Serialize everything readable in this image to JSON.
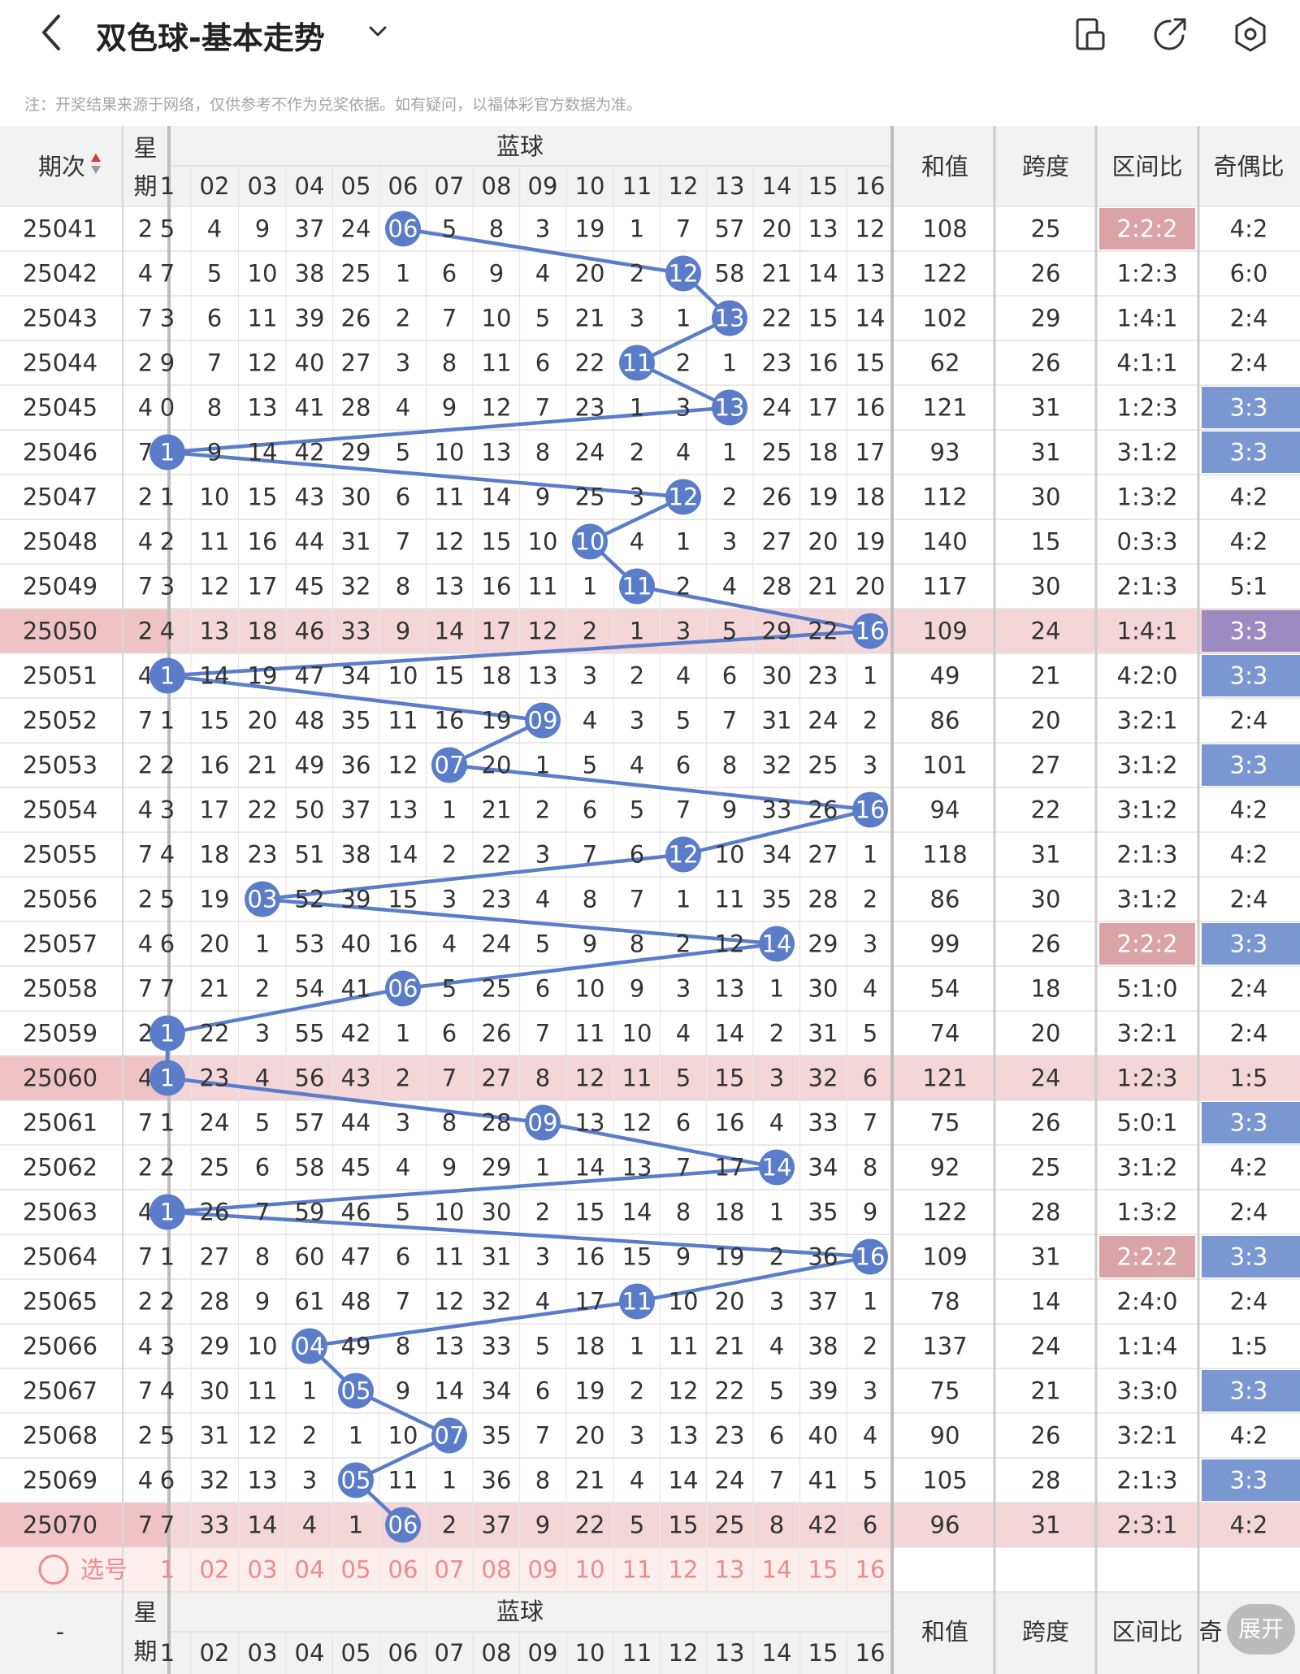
{
  "header": {
    "back_label": "<",
    "title": "双色球-基本走势",
    "dropdown_icon": "chevron-down-icon",
    "icons": [
      "phone-layout-icon",
      "share-icon",
      "settings-icon"
    ]
  },
  "note": "注：开奖结果来源于网络，仅供参考不作为兑奖依据。如有疑问，以福体彩官方数据为准。",
  "table": {
    "col_period": "期次",
    "col_week": "星期",
    "col_week_chars": [
      "星",
      "期"
    ],
    "group_label": "蓝球",
    "ball_headers": [
      "1",
      "02",
      "03",
      "04",
      "05",
      "06",
      "07",
      "08",
      "09",
      "10",
      "11",
      "12",
      "13",
      "14",
      "15",
      "16"
    ],
    "col_sum": "和值",
    "col_span": "跨度",
    "col_zone": "区间比",
    "col_parity": "奇偶比",
    "rows": [
      {
        "period": "25041",
        "week": "2",
        "cells": [
          "5",
          "4",
          "9",
          "37",
          "24",
          "06",
          "5",
          "8",
          "3",
          "19",
          "1",
          "7",
          "57",
          "20",
          "13",
          "12"
        ],
        "hit": 6,
        "sum": "108",
        "span": "25",
        "zone": "2:2:2",
        "zone_hl": true,
        "parity": "4:2",
        "parity_hl": false,
        "hl": false
      },
      {
        "period": "25042",
        "week": "4",
        "cells": [
          "7",
          "5",
          "10",
          "38",
          "25",
          "1",
          "6",
          "9",
          "4",
          "20",
          "2",
          "12",
          "58",
          "21",
          "14",
          "13"
        ],
        "hit": 12,
        "sum": "122",
        "span": "26",
        "zone": "1:2:3",
        "zone_hl": false,
        "parity": "6:0",
        "parity_hl": false,
        "hl": false
      },
      {
        "period": "25043",
        "week": "7",
        "cells": [
          "3",
          "6",
          "11",
          "39",
          "26",
          "2",
          "7",
          "10",
          "5",
          "21",
          "3",
          "1",
          "13",
          "22",
          "15",
          "14"
        ],
        "hit": 13,
        "sum": "102",
        "span": "29",
        "zone": "1:4:1",
        "zone_hl": false,
        "parity": "2:4",
        "parity_hl": false,
        "hl": false
      },
      {
        "period": "25044",
        "week": "2",
        "cells": [
          "9",
          "7",
          "12",
          "40",
          "27",
          "3",
          "8",
          "11",
          "6",
          "22",
          "11",
          "2",
          "1",
          "23",
          "16",
          "15"
        ],
        "hit": 11,
        "sum": "62",
        "span": "26",
        "zone": "4:1:1",
        "zone_hl": false,
        "parity": "2:4",
        "parity_hl": false,
        "hl": false
      },
      {
        "period": "25045",
        "week": "4",
        "cells": [
          "0",
          "8",
          "13",
          "41",
          "28",
          "4",
          "9",
          "12",
          "7",
          "23",
          "1",
          "3",
          "13",
          "24",
          "17",
          "16"
        ],
        "hit": 13,
        "sum": "121",
        "span": "31",
        "zone": "1:2:3",
        "zone_hl": false,
        "parity": "3:3",
        "parity_hl": true,
        "hl": false
      },
      {
        "period": "25046",
        "week": "7",
        "cells": [
          "1",
          "9",
          "14",
          "42",
          "29",
          "5",
          "10",
          "13",
          "8",
          "24",
          "2",
          "4",
          "1",
          "25",
          "18",
          "17"
        ],
        "hit": 1,
        "sum": "93",
        "span": "31",
        "zone": "3:1:2",
        "zone_hl": false,
        "parity": "3:3",
        "parity_hl": true,
        "hl": false
      },
      {
        "period": "25047",
        "week": "2",
        "cells": [
          "1",
          "10",
          "15",
          "43",
          "30",
          "6",
          "11",
          "14",
          "9",
          "25",
          "3",
          "12",
          "2",
          "26",
          "19",
          "18"
        ],
        "hit": 12,
        "sum": "112",
        "span": "30",
        "zone": "1:3:2",
        "zone_hl": false,
        "parity": "4:2",
        "parity_hl": false,
        "hl": false
      },
      {
        "period": "25048",
        "week": "4",
        "cells": [
          "2",
          "11",
          "16",
          "44",
          "31",
          "7",
          "12",
          "15",
          "10",
          "10",
          "4",
          "1",
          "3",
          "27",
          "20",
          "19"
        ],
        "hit": 10,
        "sum": "140",
        "span": "15",
        "zone": "0:3:3",
        "zone_hl": false,
        "parity": "4:2",
        "parity_hl": false,
        "hl": false
      },
      {
        "period": "25049",
        "week": "7",
        "cells": [
          "3",
          "12",
          "17",
          "45",
          "32",
          "8",
          "13",
          "16",
          "11",
          "1",
          "11",
          "2",
          "4",
          "28",
          "21",
          "20"
        ],
        "hit": 11,
        "sum": "117",
        "span": "30",
        "zone": "2:1:3",
        "zone_hl": false,
        "parity": "5:1",
        "parity_hl": false,
        "hl": false
      },
      {
        "period": "25050",
        "week": "2",
        "cells": [
          "4",
          "13",
          "18",
          "46",
          "33",
          "9",
          "14",
          "17",
          "12",
          "2",
          "1",
          "3",
          "5",
          "29",
          "22",
          "16"
        ],
        "hit": 16,
        "sum": "109",
        "span": "24",
        "zone": "1:4:1",
        "zone_hl": false,
        "parity": "3:3",
        "parity_hl": true,
        "hl": true
      },
      {
        "period": "25051",
        "week": "4",
        "cells": [
          "1",
          "14",
          "19",
          "47",
          "34",
          "10",
          "15",
          "18",
          "13",
          "3",
          "2",
          "4",
          "6",
          "30",
          "23",
          "1"
        ],
        "hit": 1,
        "sum": "49",
        "span": "21",
        "zone": "4:2:0",
        "zone_hl": false,
        "parity": "3:3",
        "parity_hl": true,
        "hl": false
      },
      {
        "period": "25052",
        "week": "7",
        "cells": [
          "1",
          "15",
          "20",
          "48",
          "35",
          "11",
          "16",
          "19",
          "09",
          "4",
          "3",
          "5",
          "7",
          "31",
          "24",
          "2"
        ],
        "hit": 9,
        "sum": "86",
        "span": "20",
        "zone": "3:2:1",
        "zone_hl": false,
        "parity": "2:4",
        "parity_hl": false,
        "hl": false
      },
      {
        "period": "25053",
        "week": "2",
        "cells": [
          "2",
          "16",
          "21",
          "49",
          "36",
          "12",
          "07",
          "20",
          "1",
          "5",
          "4",
          "6",
          "8",
          "32",
          "25",
          "3"
        ],
        "hit": 7,
        "sum": "101",
        "span": "27",
        "zone": "3:1:2",
        "zone_hl": false,
        "parity": "3:3",
        "parity_hl": true,
        "hl": false
      },
      {
        "period": "25054",
        "week": "4",
        "cells": [
          "3",
          "17",
          "22",
          "50",
          "37",
          "13",
          "1",
          "21",
          "2",
          "6",
          "5",
          "7",
          "9",
          "33",
          "26",
          "16"
        ],
        "hit": 16,
        "sum": "94",
        "span": "22",
        "zone": "3:1:2",
        "zone_hl": false,
        "parity": "4:2",
        "parity_hl": false,
        "hl": false
      },
      {
        "period": "25055",
        "week": "7",
        "cells": [
          "4",
          "18",
          "23",
          "51",
          "38",
          "14",
          "2",
          "22",
          "3",
          "7",
          "6",
          "12",
          "10",
          "34",
          "27",
          "1"
        ],
        "hit": 12,
        "sum": "118",
        "span": "31",
        "zone": "2:1:3",
        "zone_hl": false,
        "parity": "4:2",
        "parity_hl": false,
        "hl": false
      },
      {
        "period": "25056",
        "week": "2",
        "cells": [
          "5",
          "19",
          "03",
          "52",
          "39",
          "15",
          "3",
          "23",
          "4",
          "8",
          "7",
          "1",
          "11",
          "35",
          "28",
          "2"
        ],
        "hit": 3,
        "sum": "86",
        "span": "30",
        "zone": "3:1:2",
        "zone_hl": false,
        "parity": "2:4",
        "parity_hl": false,
        "hl": false
      },
      {
        "period": "25057",
        "week": "4",
        "cells": [
          "6",
          "20",
          "1",
          "53",
          "40",
          "16",
          "4",
          "24",
          "5",
          "9",
          "8",
          "2",
          "12",
          "14",
          "29",
          "3"
        ],
        "hit": 14,
        "sum": "99",
        "span": "26",
        "zone": "2:2:2",
        "zone_hl": true,
        "parity": "3:3",
        "parity_hl": true,
        "hl": false
      },
      {
        "period": "25058",
        "week": "7",
        "cells": [
          "7",
          "21",
          "2",
          "54",
          "41",
          "06",
          "5",
          "25",
          "6",
          "10",
          "9",
          "3",
          "13",
          "1",
          "30",
          "4"
        ],
        "hit": 6,
        "sum": "54",
        "span": "18",
        "zone": "5:1:0",
        "zone_hl": false,
        "parity": "2:4",
        "parity_hl": false,
        "hl": false
      },
      {
        "period": "25059",
        "week": "2",
        "cells": [
          "1",
          "22",
          "3",
          "55",
          "42",
          "1",
          "6",
          "26",
          "7",
          "11",
          "10",
          "4",
          "14",
          "2",
          "31",
          "5"
        ],
        "hit": 1,
        "sum": "74",
        "span": "20",
        "zone": "3:2:1",
        "zone_hl": false,
        "parity": "2:4",
        "parity_hl": false,
        "hl": false
      },
      {
        "period": "25060",
        "week": "4",
        "cells": [
          "1",
          "23",
          "4",
          "56",
          "43",
          "2",
          "7",
          "27",
          "8",
          "12",
          "11",
          "5",
          "15",
          "3",
          "32",
          "6"
        ],
        "hit": 1,
        "sum": "121",
        "span": "24",
        "zone": "1:2:3",
        "zone_hl": false,
        "parity": "1:5",
        "parity_hl": false,
        "hl": true
      },
      {
        "period": "25061",
        "week": "7",
        "cells": [
          "1",
          "24",
          "5",
          "57",
          "44",
          "3",
          "8",
          "28",
          "09",
          "13",
          "12",
          "6",
          "16",
          "4",
          "33",
          "7"
        ],
        "hit": 9,
        "sum": "75",
        "span": "26",
        "zone": "5:0:1",
        "zone_hl": false,
        "parity": "3:3",
        "parity_hl": true,
        "hl": false
      },
      {
        "period": "25062",
        "week": "2",
        "cells": [
          "2",
          "25",
          "6",
          "58",
          "45",
          "4",
          "9",
          "29",
          "1",
          "14",
          "13",
          "7",
          "17",
          "14",
          "34",
          "8"
        ],
        "hit": 14,
        "sum": "92",
        "span": "25",
        "zone": "3:1:2",
        "zone_hl": false,
        "parity": "4:2",
        "parity_hl": false,
        "hl": false
      },
      {
        "period": "25063",
        "week": "4",
        "cells": [
          "1",
          "26",
          "7",
          "59",
          "46",
          "5",
          "10",
          "30",
          "2",
          "15",
          "14",
          "8",
          "18",
          "1",
          "35",
          "9"
        ],
        "hit": 1,
        "sum": "122",
        "span": "28",
        "zone": "1:3:2",
        "zone_hl": false,
        "parity": "2:4",
        "parity_hl": false,
        "hl": false
      },
      {
        "period": "25064",
        "week": "7",
        "cells": [
          "1",
          "27",
          "8",
          "60",
          "47",
          "6",
          "11",
          "31",
          "3",
          "16",
          "15",
          "9",
          "19",
          "2",
          "36",
          "16"
        ],
        "hit": 16,
        "sum": "109",
        "span": "31",
        "zone": "2:2:2",
        "zone_hl": true,
        "parity": "3:3",
        "parity_hl": true,
        "hl": false
      },
      {
        "period": "25065",
        "week": "2",
        "cells": [
          "2",
          "28",
          "9",
          "61",
          "48",
          "7",
          "12",
          "32",
          "4",
          "17",
          "11",
          "10",
          "20",
          "3",
          "37",
          "1"
        ],
        "hit": 11,
        "sum": "78",
        "span": "14",
        "zone": "2:4:0",
        "zone_hl": false,
        "parity": "2:4",
        "parity_hl": false,
        "hl": false
      },
      {
        "period": "25066",
        "week": "4",
        "cells": [
          "3",
          "29",
          "10",
          "04",
          "49",
          "8",
          "13",
          "33",
          "5",
          "18",
          "1",
          "11",
          "21",
          "4",
          "38",
          "2"
        ],
        "hit": 4,
        "sum": "137",
        "span": "24",
        "zone": "1:1:4",
        "zone_hl": false,
        "parity": "1:5",
        "parity_hl": false,
        "hl": false
      },
      {
        "period": "25067",
        "week": "7",
        "cells": [
          "4",
          "30",
          "11",
          "1",
          "05",
          "9",
          "14",
          "34",
          "6",
          "19",
          "2",
          "12",
          "22",
          "5",
          "39",
          "3"
        ],
        "hit": 5,
        "sum": "75",
        "span": "21",
        "zone": "3:3:0",
        "zone_hl": false,
        "parity": "3:3",
        "parity_hl": true,
        "hl": false
      },
      {
        "period": "25068",
        "week": "2",
        "cells": [
          "5",
          "31",
          "12",
          "2",
          "1",
          "10",
          "07",
          "35",
          "7",
          "20",
          "3",
          "13",
          "23",
          "6",
          "40",
          "4"
        ],
        "hit": 7,
        "sum": "90",
        "span": "26",
        "zone": "3:2:1",
        "zone_hl": false,
        "parity": "4:2",
        "parity_hl": false,
        "hl": false
      },
      {
        "period": "25069",
        "week": "4",
        "cells": [
          "6",
          "32",
          "13",
          "3",
          "05",
          "11",
          "1",
          "36",
          "8",
          "21",
          "4",
          "14",
          "24",
          "7",
          "41",
          "5"
        ],
        "hit": 5,
        "sum": "105",
        "span": "28",
        "zone": "2:1:3",
        "zone_hl": false,
        "parity": "3:3",
        "parity_hl": true,
        "hl": false
      },
      {
        "period": "25070",
        "week": "7",
        "cells": [
          "7",
          "33",
          "14",
          "4",
          "1",
          "06",
          "2",
          "37",
          "9",
          "22",
          "5",
          "15",
          "25",
          "8",
          "42",
          "6"
        ],
        "hit": 6,
        "sum": "96",
        "span": "31",
        "zone": "2:3:1",
        "zone_hl": false,
        "parity": "4:2",
        "parity_hl": false,
        "hl": true
      }
    ],
    "select_label": "选号",
    "select_numbers": [
      "1",
      "02",
      "03",
      "04",
      "05",
      "06",
      "07",
      "08",
      "09",
      "10",
      "11",
      "12",
      "13",
      "14",
      "15",
      "16"
    ],
    "footer_period": "-",
    "footer_parity_partial": "奇",
    "expand_label": "展开"
  },
  "colors": {
    "ball": "#5b7dc9",
    "line": "#5b7dc9",
    "row_hl": "#f4d6d8",
    "row_hl_frozen": "#efc3c6",
    "zone_hl": "#d9a3a8",
    "parity_hl": "#7b97d2",
    "parity_hl_on_red": "#9c8bc0",
    "select_text": "#f08a8a",
    "select_bg": "#fdeeee",
    "header_bg": "#f2f2f2",
    "sort_up": "#e03030",
    "sort_down": "#999999"
  }
}
